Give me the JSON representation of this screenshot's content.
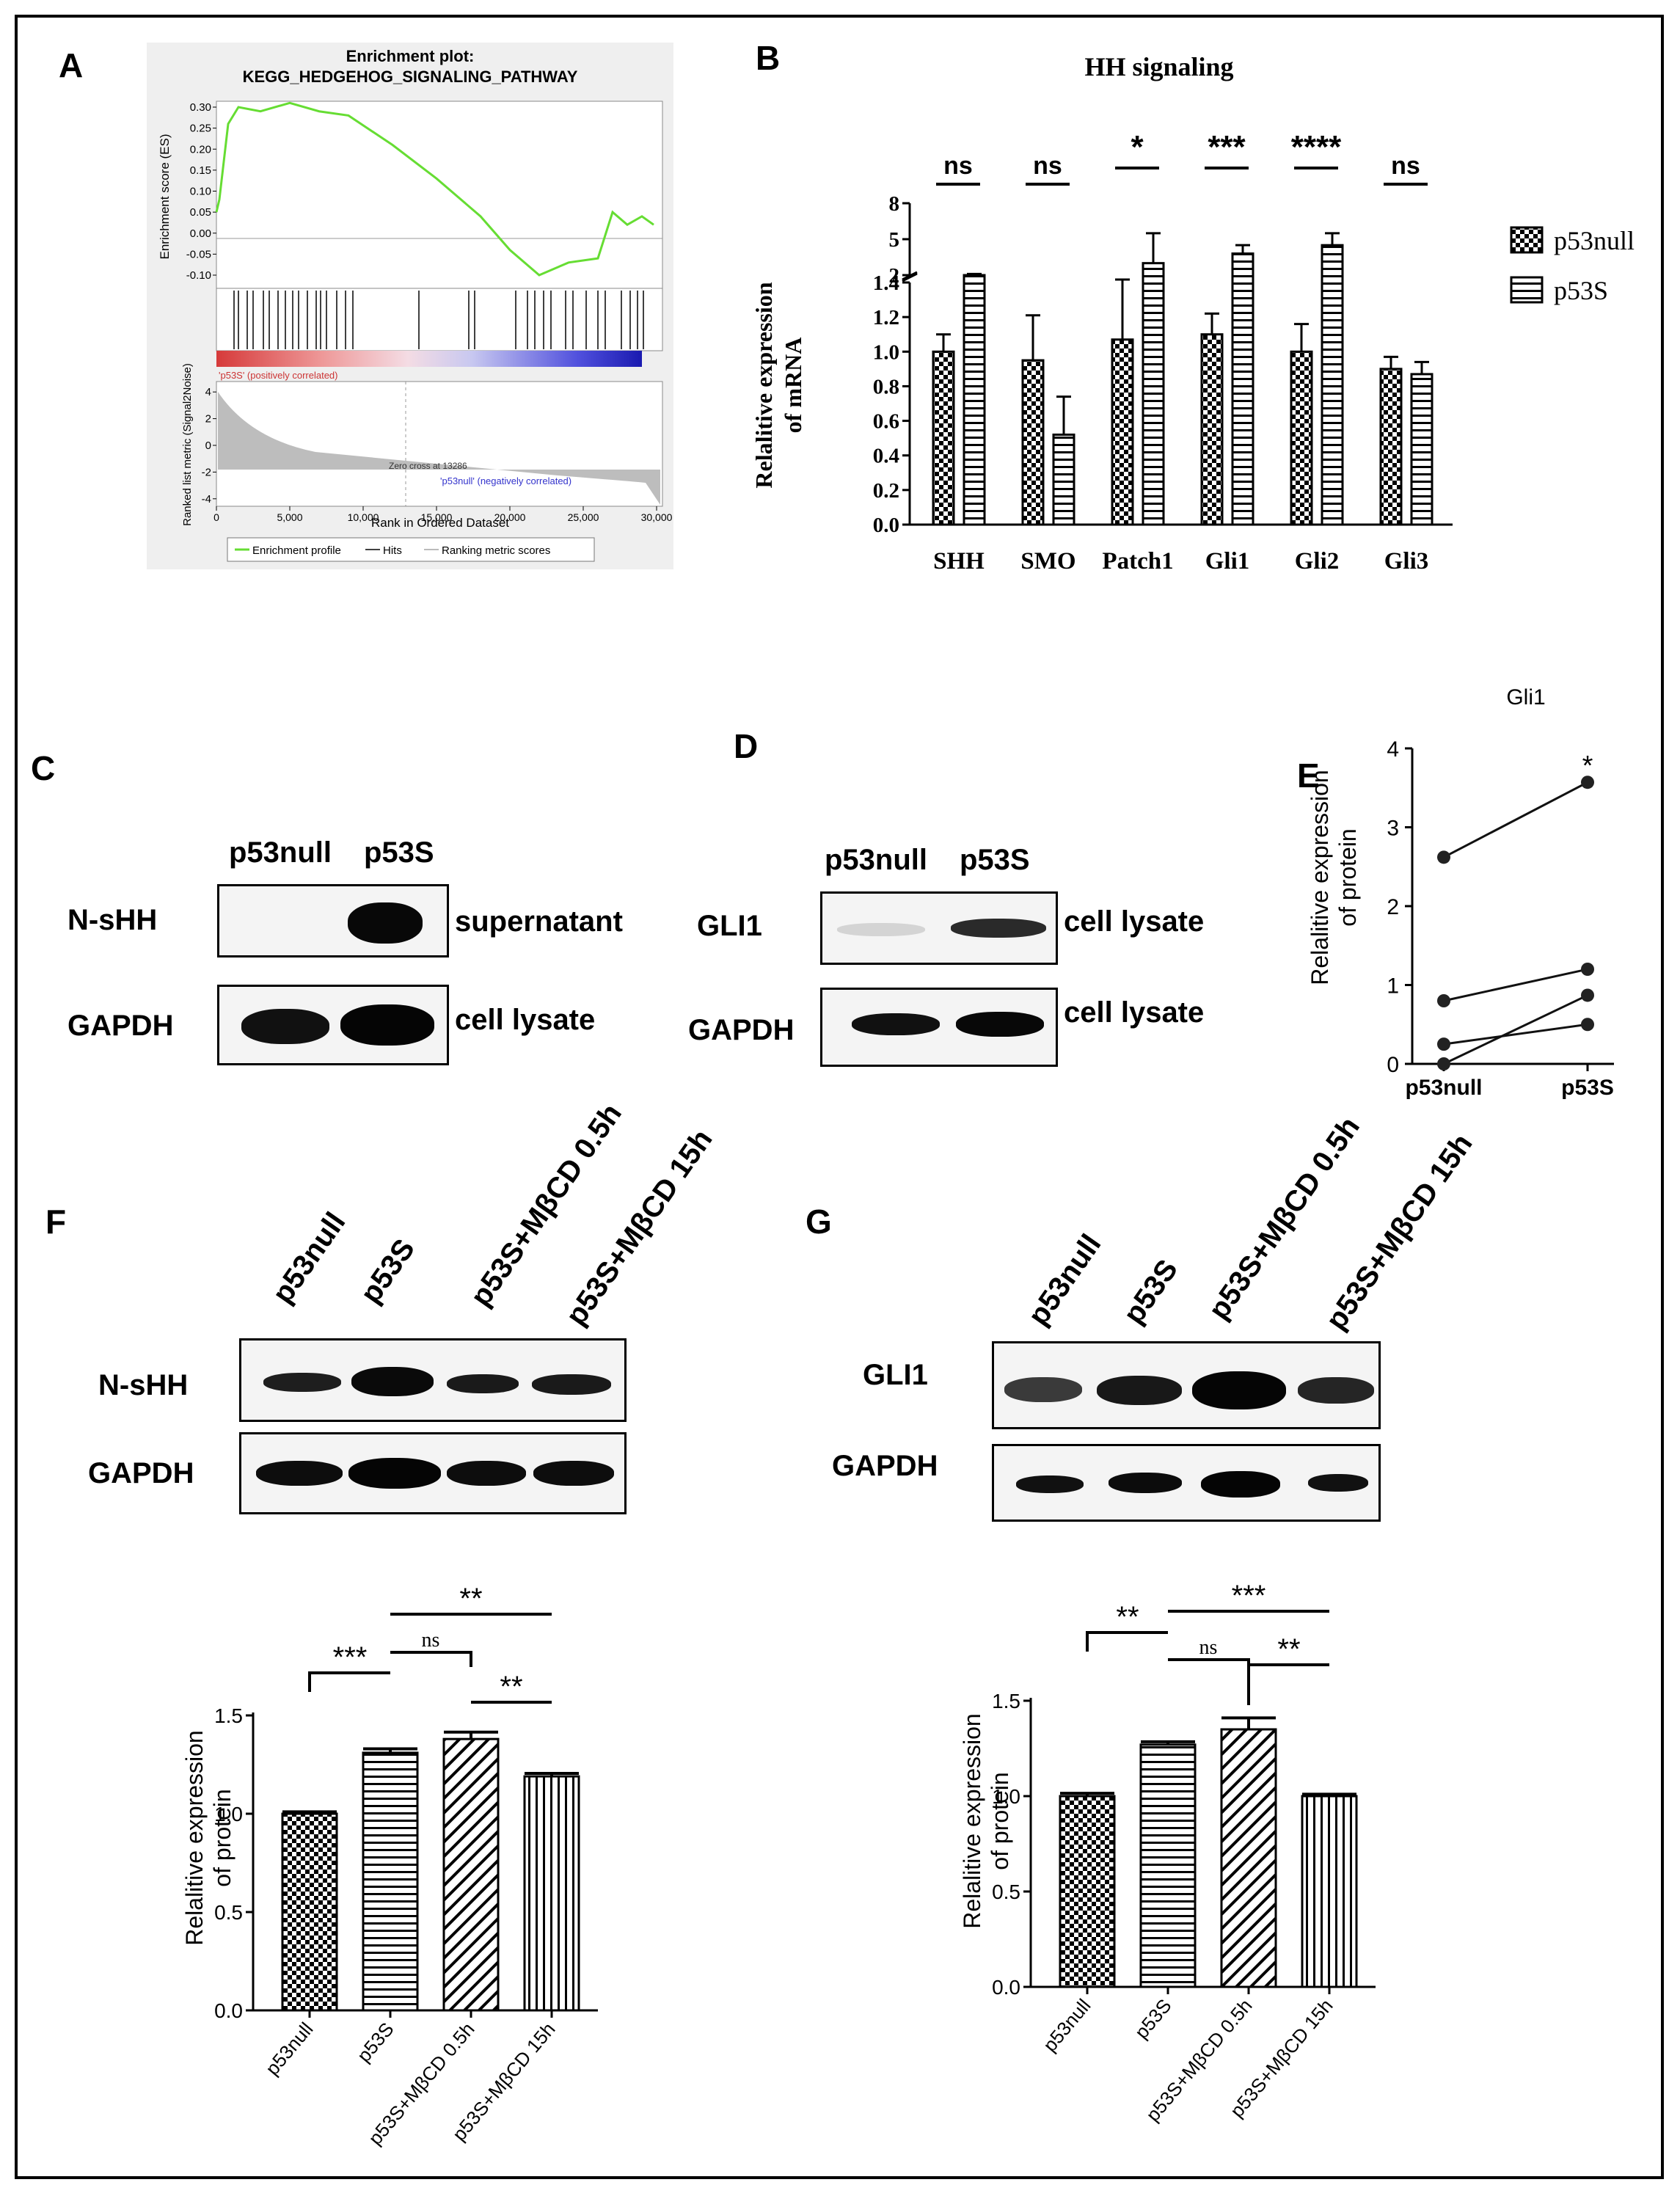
{
  "panel_labels": [
    "A",
    "B",
    "C",
    "D",
    "E",
    "F",
    "G"
  ],
  "panel_a": {
    "title_line1": "Enrichment plot:",
    "title_line2": "KEGG_HEDGEHOG_SIGNALING_PATHWAY",
    "es_ylabel": "Enrichment score (ES)",
    "es_ticks": [
      "0.30",
      "0.25",
      "0.20",
      "0.15",
      "0.10",
      "0.05",
      "0.00",
      "-0.05",
      "-0.10"
    ],
    "rank_ylabel": "Ranked list metric (Signal2Noise)",
    "rank_ticks": [
      "4",
      "2",
      "0",
      "-2",
      "-4"
    ],
    "pos_label": "'p53S' (positively correlated)",
    "neg_label": "'p53null' (negatively correlated)",
    "zero_cross": "Zero cross at 13286",
    "xlabel": "Rank in Ordered Dataset",
    "x_ticks": [
      "0",
      "5,000",
      "10,000",
      "15,000",
      "20,000",
      "25,000",
      "30,000"
    ],
    "legend": [
      "Enrichment profile",
      "Hits",
      "Ranking metric scores"
    ],
    "colors": {
      "profile": "#66dd33",
      "pos": "#e06060",
      "neg": "#2222cc"
    }
  },
  "chart_data": [
    {
      "id": "B",
      "type": "bar",
      "title": "HH signaling",
      "ylabel_line1": "Relalitive expression",
      "ylabel_line2": "of mRNA",
      "categories": [
        "SHH",
        "SMO",
        "Patch1",
        "Gli1",
        "Gli2",
        "Gli3"
      ],
      "y_ticks_lower": [
        "0.0",
        "0.2",
        "0.4",
        "0.6",
        "0.8",
        "1.0",
        "1.2",
        "1.4"
      ],
      "y_ticks_upper": [
        "2",
        "5",
        "8"
      ],
      "series": [
        {
          "name": "p53null",
          "values": [
            1.0,
            0.95,
            1.07,
            1.1,
            1.0,
            0.9
          ],
          "errors": [
            0.1,
            0.26,
            0.33,
            0.12,
            0.16,
            0.07
          ]
        },
        {
          "name": "p53S",
          "values": [
            2.0,
            0.52,
            3.0,
            3.8,
            4.5,
            0.87
          ],
          "errors": [
            0.1,
            0.22,
            2.5,
            0.7,
            1.0,
            0.07
          ]
        }
      ],
      "significance": [
        "ns",
        "ns",
        "*",
        "***",
        "****",
        "ns"
      ],
      "ylim_lower": [
        0,
        1.4
      ],
      "ylim_upper": [
        2,
        8
      ]
    },
    {
      "id": "E",
      "type": "line",
      "title": "Gli1",
      "ylabel_line1": "Relalitive expression",
      "ylabel_line2": "of protein",
      "categories": [
        "p53null",
        "p53S"
      ],
      "y_ticks": [
        "0",
        "1",
        "2",
        "3",
        "4"
      ],
      "ylim": [
        0,
        4
      ],
      "pairs": [
        [
          2.62,
          3.57
        ],
        [
          0.8,
          1.2
        ],
        [
          0.25,
          0.5
        ],
        [
          0.0,
          0.87
        ]
      ],
      "significance": "*"
    },
    {
      "id": "F-quant",
      "type": "bar",
      "ylabel_line1": "Relalitive expression",
      "ylabel_line2": "of protein",
      "categories": [
        "p53null",
        "p53S",
        "p53S+MβCD 0.5h",
        "p53S+MβCD 15h"
      ],
      "values": [
        1.0,
        1.31,
        1.38,
        1.19
      ],
      "errors": [
        0.01,
        0.02,
        0.035,
        0.015
      ],
      "y_ticks": [
        "0.0",
        "0.5",
        "1.0",
        "1.5"
      ],
      "ylim": [
        0,
        1.5
      ],
      "brackets": [
        {
          "from": 0,
          "to": 1,
          "label": "***"
        },
        {
          "from": 1,
          "to": 2,
          "label": "ns"
        },
        {
          "from": 2,
          "to": 3,
          "label": "**"
        },
        {
          "from": 1,
          "to": 3,
          "label": "**"
        }
      ]
    },
    {
      "id": "G-quant",
      "type": "bar",
      "ylabel_line1": "Relalitive expression",
      "ylabel_line2": "of protein",
      "categories": [
        "p53null",
        "p53S",
        "p53S+MβCD 0.5h",
        "p53S+MβCD 15h"
      ],
      "values": [
        1.0,
        1.27,
        1.35,
        1.0
      ],
      "errors": [
        0.015,
        0.015,
        0.06,
        0.01
      ],
      "y_ticks": [
        "0.0",
        "0.5",
        "1.0",
        "1.5"
      ],
      "ylim": [
        0,
        1.5
      ],
      "brackets": [
        {
          "from": 0,
          "to": 1,
          "label": "**"
        },
        {
          "from": 1,
          "to": 2,
          "label": "ns"
        },
        {
          "from": 2,
          "to": 3,
          "label": "**"
        },
        {
          "from": 1,
          "to": 3,
          "label": "***"
        }
      ]
    }
  ],
  "panel_c": {
    "lanes": [
      "p53null",
      "p53S"
    ],
    "row1_label": "N-sHH",
    "row1_note": "supernatant",
    "row2_label": "GAPDH",
    "row2_note": "cell lysate"
  },
  "panel_d": {
    "lanes": [
      "p53null",
      "p53S"
    ],
    "row1_label": "GLI1",
    "row1_note": "cell lysate",
    "row2_label": "GAPDH",
    "row2_note": "cell lysate"
  },
  "panel_f": {
    "lanes": [
      "p53null",
      "p53S",
      "p53S+MβCD 0.5h",
      "p53S+MβCD 15h"
    ],
    "row1_label": "N-sHH",
    "row2_label": "GAPDH"
  },
  "panel_g": {
    "lanes": [
      "p53null",
      "p53S",
      "p53S+MβCD 0.5h",
      "p53S+MβCD 15h"
    ],
    "row1_label": "GLI1",
    "row2_label": "GAPDH"
  }
}
